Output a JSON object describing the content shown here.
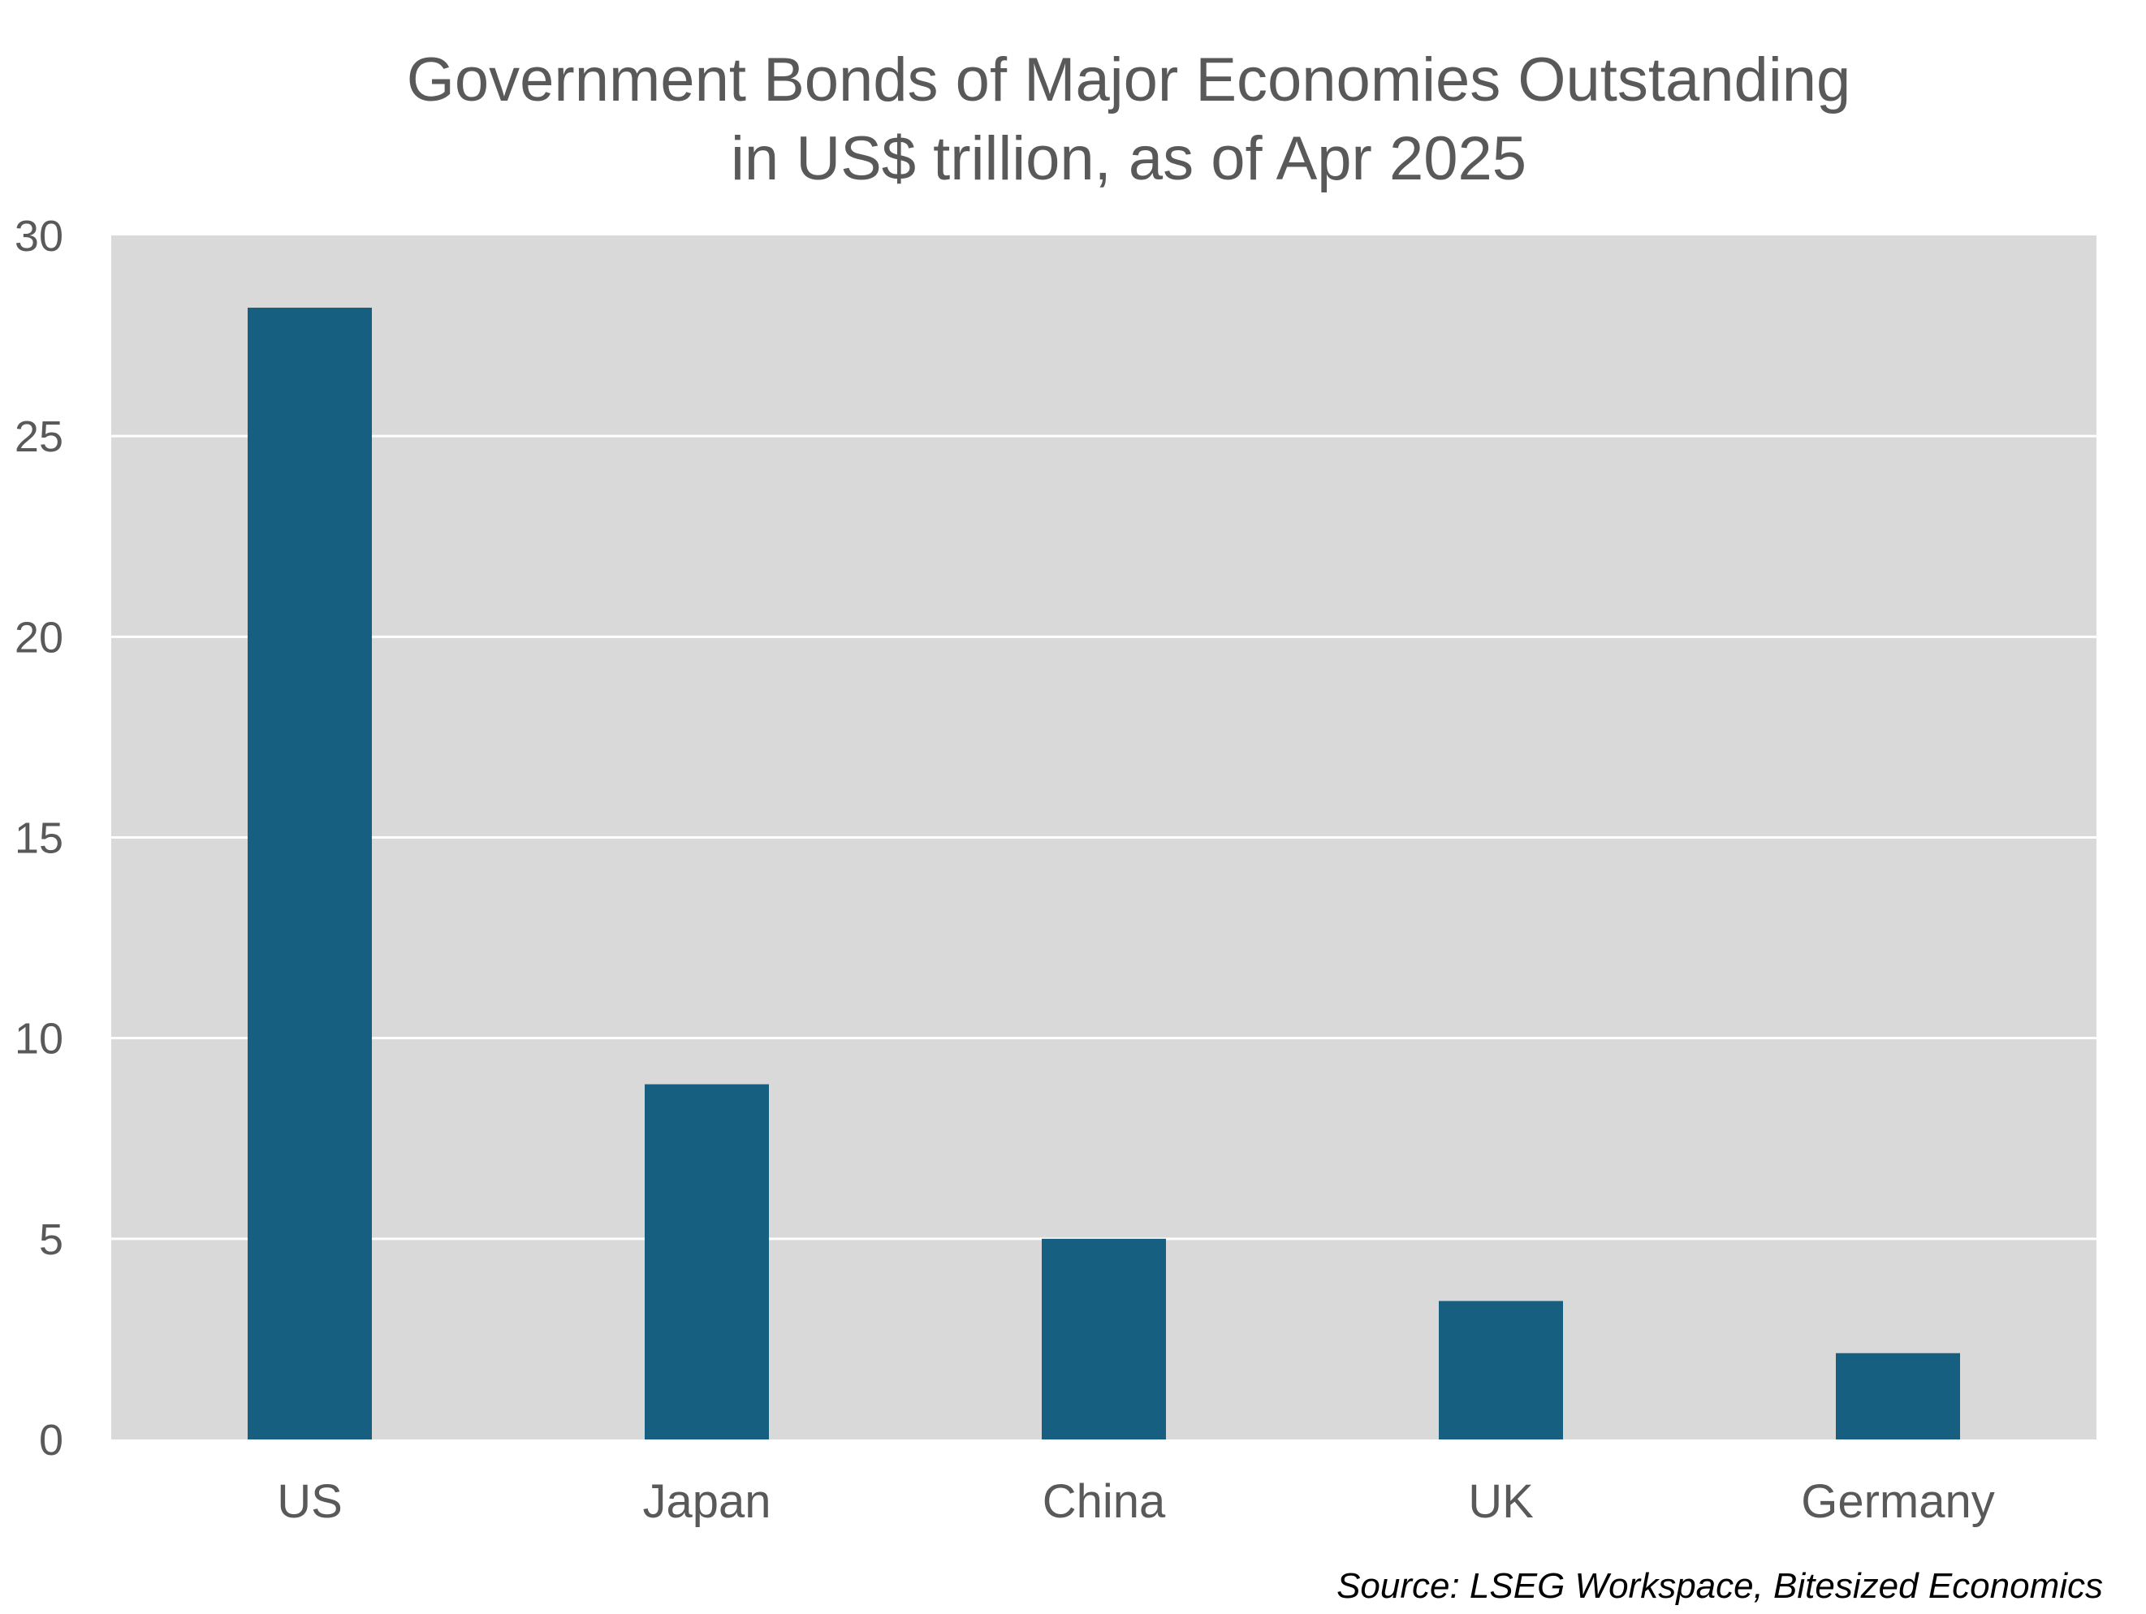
{
  "chart_data": {
    "type": "bar",
    "title": "Government Bonds of Major Economies Outstanding",
    "subtitle": "in US$ trillion, as of Apr 2025",
    "categories": [
      "US",
      "Japan",
      "China",
      "UK",
      "Germany"
    ],
    "values": [
      28.2,
      8.85,
      5.0,
      3.45,
      2.15
    ],
    "ylim": [
      0,
      30
    ],
    "yticks": [
      0,
      5,
      10,
      15,
      20,
      25,
      30
    ],
    "xlabel": "",
    "ylabel": "",
    "grid": true,
    "legend": "none",
    "source": "Source: LSEG Workspace, Bitesized Economics"
  },
  "colors": {
    "bar": "#175f81",
    "plot_background": "#d9d9d9",
    "gridline": "#ffffff",
    "text": "#595959",
    "source_text": "#000000"
  }
}
